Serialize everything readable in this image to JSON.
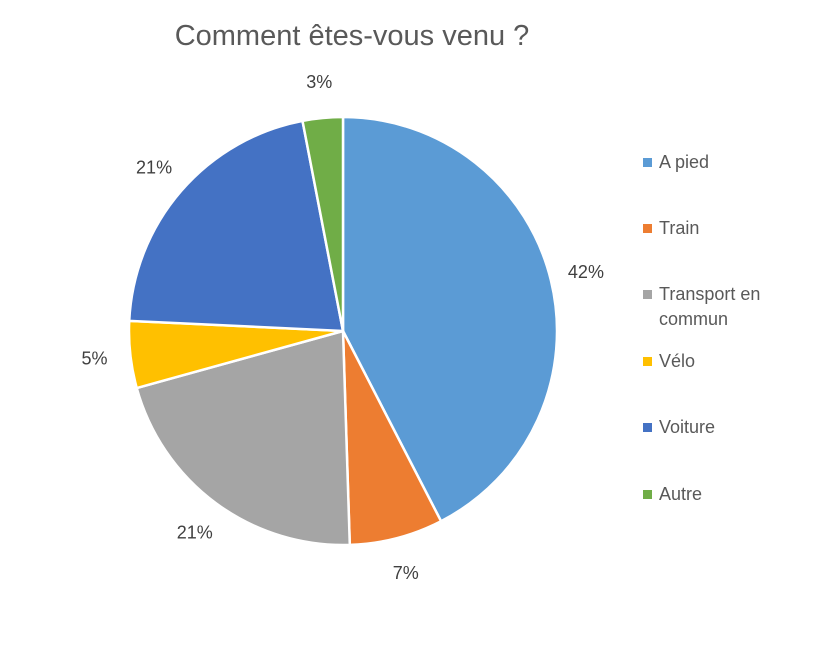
{
  "chart_data": {
    "type": "pie",
    "title": "Comment êtes-vous venu ?",
    "categories": [
      "A pied",
      "Train",
      "Transport en commun",
      "Vélo",
      "Voiture",
      "Autre"
    ],
    "values": [
      42,
      7,
      21,
      5,
      21,
      3
    ],
    "data_labels": [
      "42%",
      "7%",
      "21%",
      "5%",
      "21%",
      "3%"
    ],
    "colors": [
      "#5B9BD5",
      "#ED7D31",
      "#A5A5A5",
      "#FFC000",
      "#4472C4",
      "#70AD47"
    ],
    "legend_position": "right",
    "start_angle": "top, clockwise"
  }
}
